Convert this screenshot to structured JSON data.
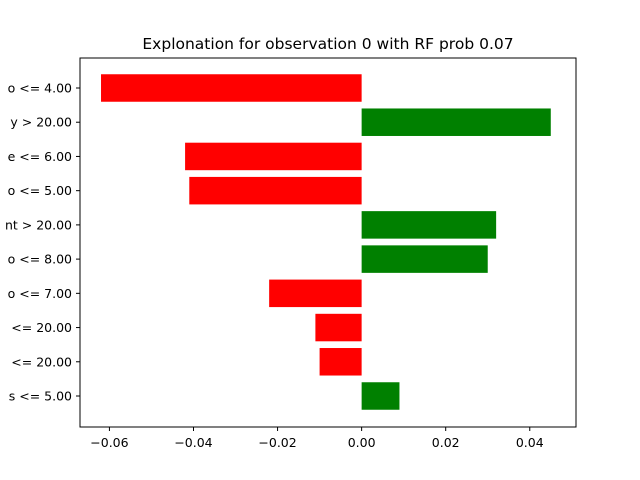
{
  "chart_data": {
    "type": "bar",
    "orientation": "horizontal",
    "title": "Explonation for observation 0 with RF prob 0.07",
    "xlabel": "",
    "ylabel": "",
    "categories": [
      "o <= 4.00",
      "y > 20.00",
      "e <= 6.00",
      "o <= 5.00",
      "nt > 20.00",
      "o <= 8.00",
      "o <= 7.00",
      "<= 20.00",
      "<= 20.00",
      "s <= 5.00"
    ],
    "values": [
      -0.062,
      0.045,
      -0.042,
      -0.041,
      0.032,
      0.03,
      -0.022,
      -0.011,
      -0.01,
      0.009
    ],
    "xlim": [
      -0.067,
      0.051
    ],
    "xticks": [
      -0.06,
      -0.04,
      -0.02,
      0.0,
      0.02,
      0.04
    ],
    "xtick_labels": [
      "−0.06",
      "−0.04",
      "−0.02",
      "0.00",
      "0.02",
      "0.04"
    ],
    "positive_color": "#008000",
    "negative_color": "#ff0000",
    "grid": false,
    "legend": "none"
  }
}
